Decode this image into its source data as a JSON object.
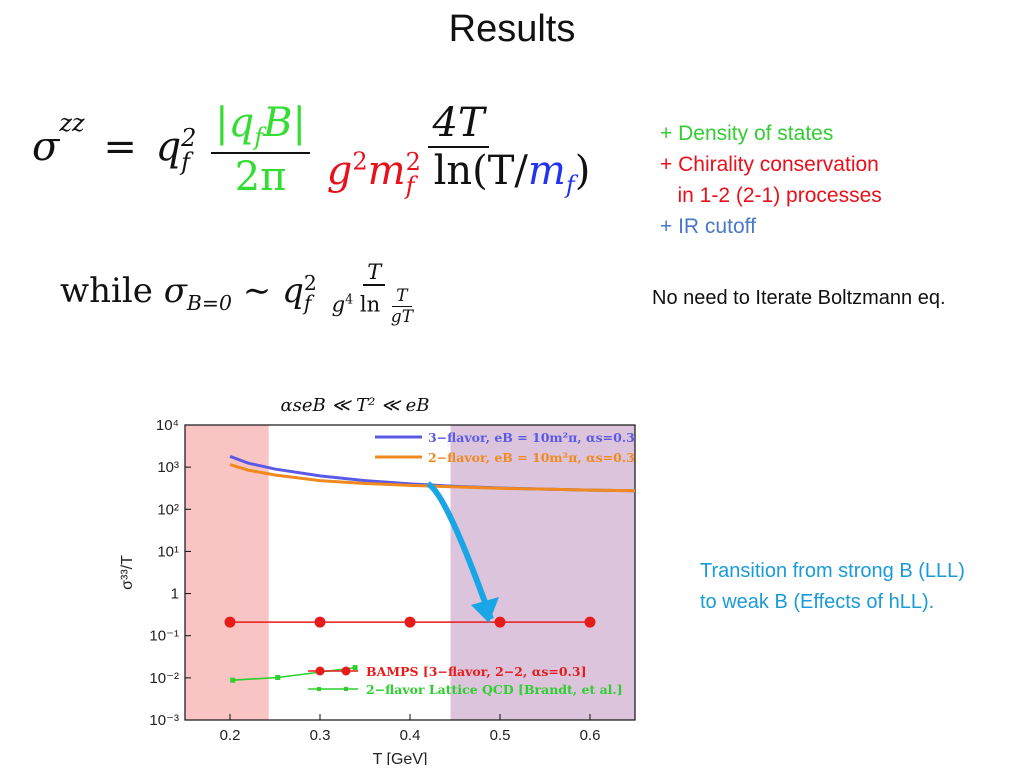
{
  "slide": {
    "title": "Results",
    "formula_main": {
      "lhs_symbol": "σ",
      "lhs_sup": "zz",
      "eq": "=",
      "q": "q",
      "q_sup": "2",
      "q_sub": "f",
      "frac1_num": "|q",
      "frac1_num_sub": "f",
      "frac1_num_rest": "B|",
      "frac1_den": "2π",
      "frac2_num": "4T",
      "frac2_den_g": "g",
      "frac2_den_g_sup": "2",
      "frac2_den_m": "m",
      "frac2_den_m_sup": "2",
      "frac2_den_m_sub": "f",
      "frac2_den_ln": " ln(T/",
      "frac2_den_mf": "m",
      "frac2_den_mf_sub": "f",
      "frac2_den_close": ")"
    },
    "formula_second": {
      "while": "while",
      "sigma": "σ",
      "sigma_sub": "B=0",
      "sim": "∼",
      "q": "q",
      "q_sup": "2",
      "q_sub": "f",
      "num": "T",
      "den_g": "g",
      "den_g_sup": "4",
      "den_ln": " ln ",
      "inner_num": "T",
      "inner_den": "gT"
    },
    "side_notes": [
      {
        "text": "+ Density of states",
        "color": "#33cc33"
      },
      {
        "text": "+ Chirality conservation",
        "color": "#e8101a"
      },
      {
        "text": "   in 1-2 (2-1) processes",
        "color": "#e8101a"
      },
      {
        "text": "+ IR cutoff",
        "color": "#4a78c8"
      }
    ],
    "no_iterate_note": "No need to Iterate Boltzmann eq.",
    "transition_lines": [
      "Transition from strong B (LLL)",
      "to weak B (Effects of hLL)."
    ],
    "transition_color": "#1a9bd7"
  },
  "chart_data": {
    "type": "line",
    "title": "αseB ≪ T² ≪ eB",
    "xlabel": "T [GeV]",
    "ylabel": "σ³³/T",
    "xlim": [
      0.15,
      0.65
    ],
    "ylim_log10": [
      -3,
      4
    ],
    "yscale": "log",
    "xticks": [
      "0.2",
      "0.3",
      "0.4",
      "0.5",
      "0.6"
    ],
    "xtick_values": [
      0.2,
      0.3,
      0.4,
      0.5,
      0.6
    ],
    "yticks": [
      "10⁻³",
      "10⁻²",
      "10⁻¹",
      "1",
      "10¹",
      "10²",
      "10³",
      "10⁴"
    ],
    "ytick_exponents": [
      -3,
      -2,
      -1,
      0,
      1,
      2,
      3,
      4
    ],
    "shaded_regions": [
      {
        "x": [
          0.15,
          0.243
        ],
        "color": "#f9c4c4"
      },
      {
        "x": [
          0.445,
          0.65
        ],
        "color": "#dcc4dc"
      }
    ],
    "series": [
      {
        "name": "3−flavor, eB = 10m²π, αs=0.3",
        "color": "#5a5ae6",
        "x": [
          0.2,
          0.22,
          0.25,
          0.3,
          0.35,
          0.4,
          0.45,
          0.5,
          0.55,
          0.6,
          0.65
        ],
        "y": [
          1800,
          1250,
          900,
          620,
          480,
          400,
          350,
          320,
          300,
          285,
          275
        ]
      },
      {
        "name": "2−flavor, eB = 10m²π, αs=0.3",
        "color": "#f08a1e",
        "x": [
          0.2,
          0.22,
          0.25,
          0.3,
          0.35,
          0.4,
          0.45,
          0.5,
          0.55,
          0.6,
          0.65
        ],
        "y": [
          1150,
          850,
          650,
          480,
          410,
          370,
          340,
          315,
          300,
          285,
          275
        ]
      },
      {
        "name": "BAMPS [3−flavor, 2−2, αs=0.3]",
        "color": "#e81b1b",
        "marker": "circle",
        "x": [
          0.2,
          0.3,
          0.4,
          0.5,
          0.6
        ],
        "y": [
          0.21,
          0.21,
          0.21,
          0.21,
          0.21
        ]
      },
      {
        "name": "2−flavor Lattice QCD [Brandt, et al.]",
        "color": "#2ccf2c",
        "marker": "square",
        "x": [
          0.203,
          0.253,
          0.339
        ],
        "y": [
          0.0088,
          0.0102,
          0.0175
        ]
      }
    ],
    "arrow": {
      "from": [
        0.42,
        400
      ],
      "via": [
        0.44,
        250
      ],
      "to": [
        0.49,
        0.25
      ],
      "color": "#19a6e6"
    }
  }
}
